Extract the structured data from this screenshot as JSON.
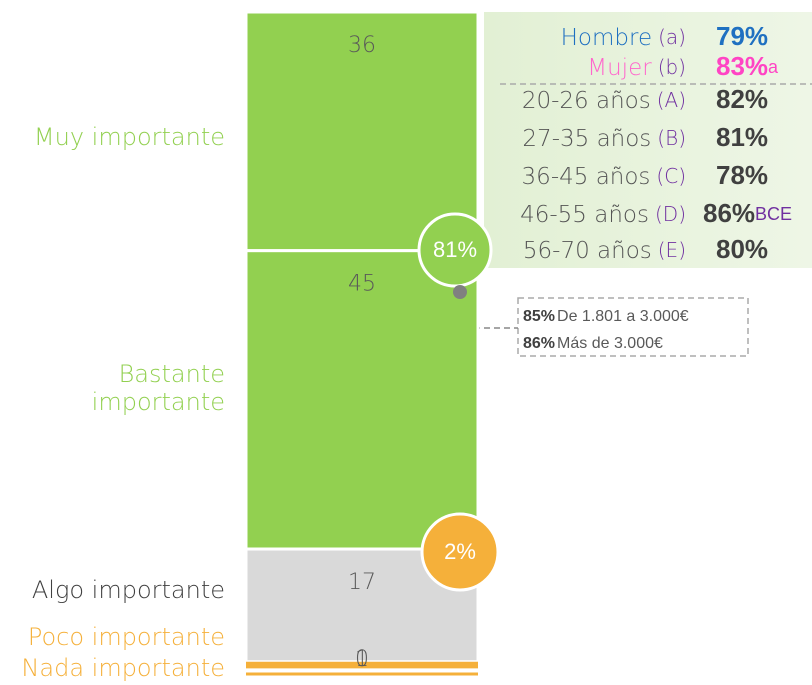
{
  "chart_data": {
    "type": "bar",
    "stacked": true,
    "ylim": [
      0,
      100
    ],
    "series": [
      {
        "name": "Muy importante",
        "color": "#92d050",
        "label_color": "#92d050",
        "values": [
          36
        ]
      },
      {
        "name": "Bastante importante",
        "color": "#92d050",
        "label_color": "#92d050",
        "values": [
          45
        ]
      },
      {
        "name": "Algo importante",
        "color": "#d9d9d9",
        "label_color": "#404040",
        "values": [
          17
        ]
      },
      {
        "name": "Poco importante",
        "color": "#f5b03a",
        "label_color": "#f5b03a",
        "values": [
          1
        ]
      },
      {
        "name": "Nada importante",
        "color": "#f5b03a",
        "label_color": "#f5b03a",
        "values": [
          0
        ]
      }
    ],
    "annotations": {
      "top_circle": "81%",
      "bottom_circle": "2%",
      "groups": [
        {
          "name": "Hombre",
          "code": "(a)",
          "value": "79%",
          "name_color": "#1f70c1",
          "value_color": "#1f70c1"
        },
        {
          "name": "Mujer",
          "code": "(b)",
          "value": "83%",
          "sig": "a",
          "name_color": "#ff66cc",
          "value_color": "#ff44c4"
        },
        {
          "name": "20-26 años",
          "code": "(A)",
          "value": "82%"
        },
        {
          "name": "27-35 años",
          "code": "(B)",
          "value": "81%"
        },
        {
          "name": "36-45 años",
          "code": "(C)",
          "value": "78%"
        },
        {
          "name": "46-55 años",
          "code": "(D)",
          "value": "86%",
          "sig": "BCE"
        },
        {
          "name": "56-70 años",
          "code": "(E)",
          "value": "80%"
        }
      ],
      "income": [
        {
          "value": "85%",
          "label": "De 1.801 a 3.000€"
        },
        {
          "value": "86%",
          "label": "Más de 3.000€"
        }
      ]
    }
  }
}
